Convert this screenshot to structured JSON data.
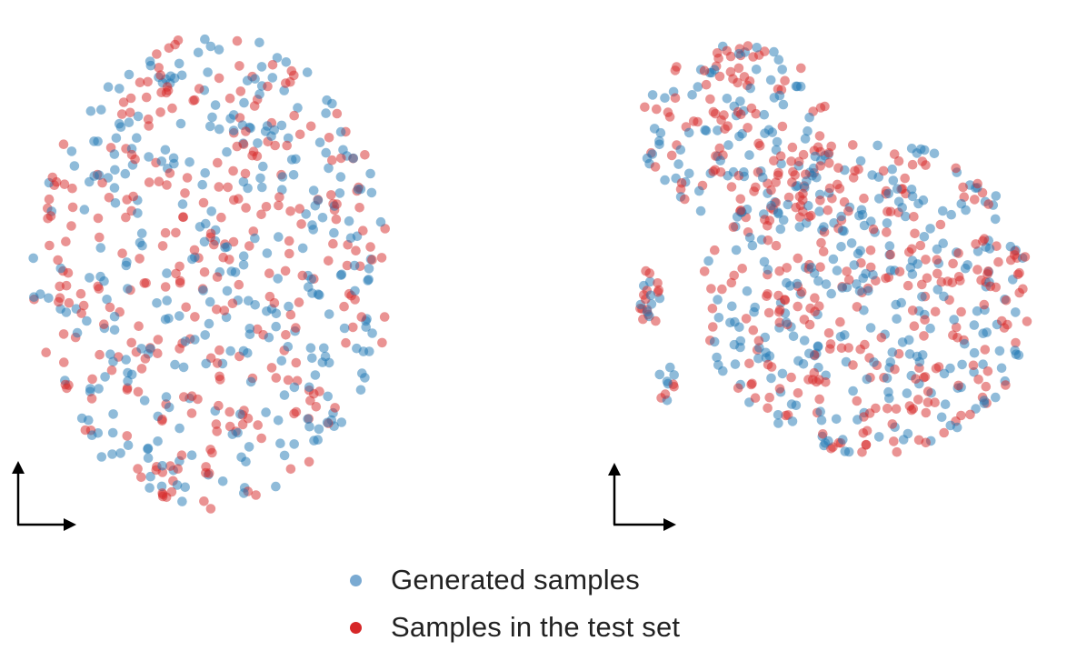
{
  "chart_data": [
    {
      "type": "scatter",
      "title": "",
      "xlabel": "",
      "ylabel": "",
      "grid": false,
      "legend_position": "bottom-center",
      "clusters": [
        {
          "cx": 0.4,
          "cy": 0.52,
          "rx": 0.4,
          "ry": 0.48,
          "count": 620
        }
      ],
      "series": [
        {
          "name": "Generated samples",
          "color": "#1f77b4"
        },
        {
          "name": "Samples in the test set",
          "color": "#d62728"
        }
      ]
    },
    {
      "type": "scatter",
      "title": "",
      "xlabel": "",
      "ylabel": "",
      "grid": false,
      "legend_position": "bottom-center",
      "clusters": [
        {
          "cx": 0.25,
          "cy": 0.24,
          "rx": 0.22,
          "ry": 0.2,
          "count": 170
        },
        {
          "cx": 0.55,
          "cy": 0.62,
          "rx": 0.38,
          "ry": 0.36,
          "count": 540
        },
        {
          "cx": 0.05,
          "cy": 0.62,
          "rx": 0.03,
          "ry": 0.07,
          "count": 22
        },
        {
          "cx": 0.09,
          "cy": 0.82,
          "rx": 0.02,
          "ry": 0.05,
          "count": 10
        }
      ],
      "series": [
        {
          "name": "Generated samples",
          "color": "#1f77b4"
        },
        {
          "name": "Samples in the test set",
          "color": "#d62728"
        }
      ]
    }
  ],
  "legend": {
    "generated_label": "Generated samples",
    "test_label": "Samples in the test set",
    "generated_color": "#7aaad2",
    "test_color": "#d62728"
  },
  "colors": {
    "generated_point": "#1f77b4",
    "test_point": "#d62728",
    "axis_arrow": "#000000"
  }
}
